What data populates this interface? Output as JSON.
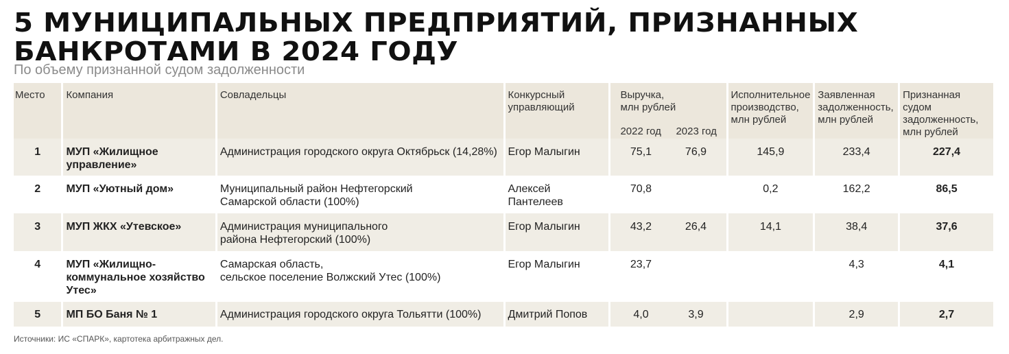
{
  "header": {
    "title_line1": "5 МУНИЦИПАЛЬНЫХ ПРЕДПРИЯТИЙ, ПРИЗНАННЫХ",
    "title_line2": "БАНКРОТАМИ В 2024 ГОДУ",
    "subtitle": "По объему признанной судом задолженности"
  },
  "columns": {
    "place": "Место",
    "company": "Компания",
    "owners": "Совладельцы",
    "manager_l1": "Конкурсный",
    "manager_l2": "управляющий",
    "revenue_l1": "Выручка,",
    "revenue_l2": "млн рублей",
    "year1": "2022 год",
    "year2": "2023 год",
    "enforcement_l1": "Исполнительное",
    "enforcement_l2": "производство,",
    "enforcement_l3": "млн рублей",
    "declared_l1": "Заявленная",
    "declared_l2": "задолженность,",
    "declared_l3": "млн рублей",
    "recognized_l1": "Признанная судом",
    "recognized_l2": "задолженность,",
    "recognized_l3": "млн рублей"
  },
  "rows": [
    {
      "rank": "1",
      "company_l1": "МУП «Жилищное",
      "company_l2": "управление»",
      "company_l3": "",
      "owners_l1": "Администрация городского округа Октябрьск (14,28%)",
      "owners_l2": "",
      "manager": "Егор Малыгин",
      "rev2022": "75,1",
      "rev2023": "76,9",
      "enforcement": "145,9",
      "declared": "233,4",
      "recognized": "227,4"
    },
    {
      "rank": "2",
      "company_l1": "МУП «Уютный дом»",
      "company_l2": "",
      "company_l3": "",
      "owners_l1": "Муниципальный район Нефтегорский",
      "owners_l2": "Самарской области (100%)",
      "manager": "Алексей Пантелеев",
      "rev2022": "70,8",
      "rev2023": "",
      "enforcement": "0,2",
      "declared": "162,2",
      "recognized": "86,5"
    },
    {
      "rank": "3",
      "company_l1": "МУП ЖКХ «Утевское»",
      "company_l2": "",
      "company_l3": "",
      "owners_l1": "Администрация муниципального",
      "owners_l2": "района Нефтегорский (100%)",
      "manager": "Егор Малыгин",
      "rev2022": "43,2",
      "rev2023": "26,4",
      "enforcement": "14,1",
      "declared": "38,4",
      "recognized": "37,6"
    },
    {
      "rank": "4",
      "company_l1": "МУП «Жилищно-",
      "company_l2": "коммунальное хозяйство",
      "company_l3": "Утес»",
      "owners_l1": "Самарская область,",
      "owners_l2": "сельское поселение Волжский Утес (100%)",
      "manager": "Егор Малыгин",
      "rev2022": "23,7",
      "rev2023": "",
      "enforcement": "",
      "declared": "4,3",
      "recognized": "4,1"
    },
    {
      "rank": "5",
      "company_l1": "МП БО Баня № 1",
      "company_l2": "",
      "company_l3": "",
      "owners_l1": "Администрация городского округа Тольятти (100%)",
      "owners_l2": "",
      "manager": "Дмитрий Попов",
      "rev2022": "4,0",
      "rev2023": "3,9",
      "enforcement": "",
      "declared": "2,9",
      "recognized": "2,7"
    }
  ],
  "footer": {
    "source": "Источники: ИС «СПАРК», картотека арбитражных дел."
  },
  "colors": {
    "accent": "#c0282d",
    "band": "#f0ede5",
    "header_bg": "#ece7dc"
  }
}
